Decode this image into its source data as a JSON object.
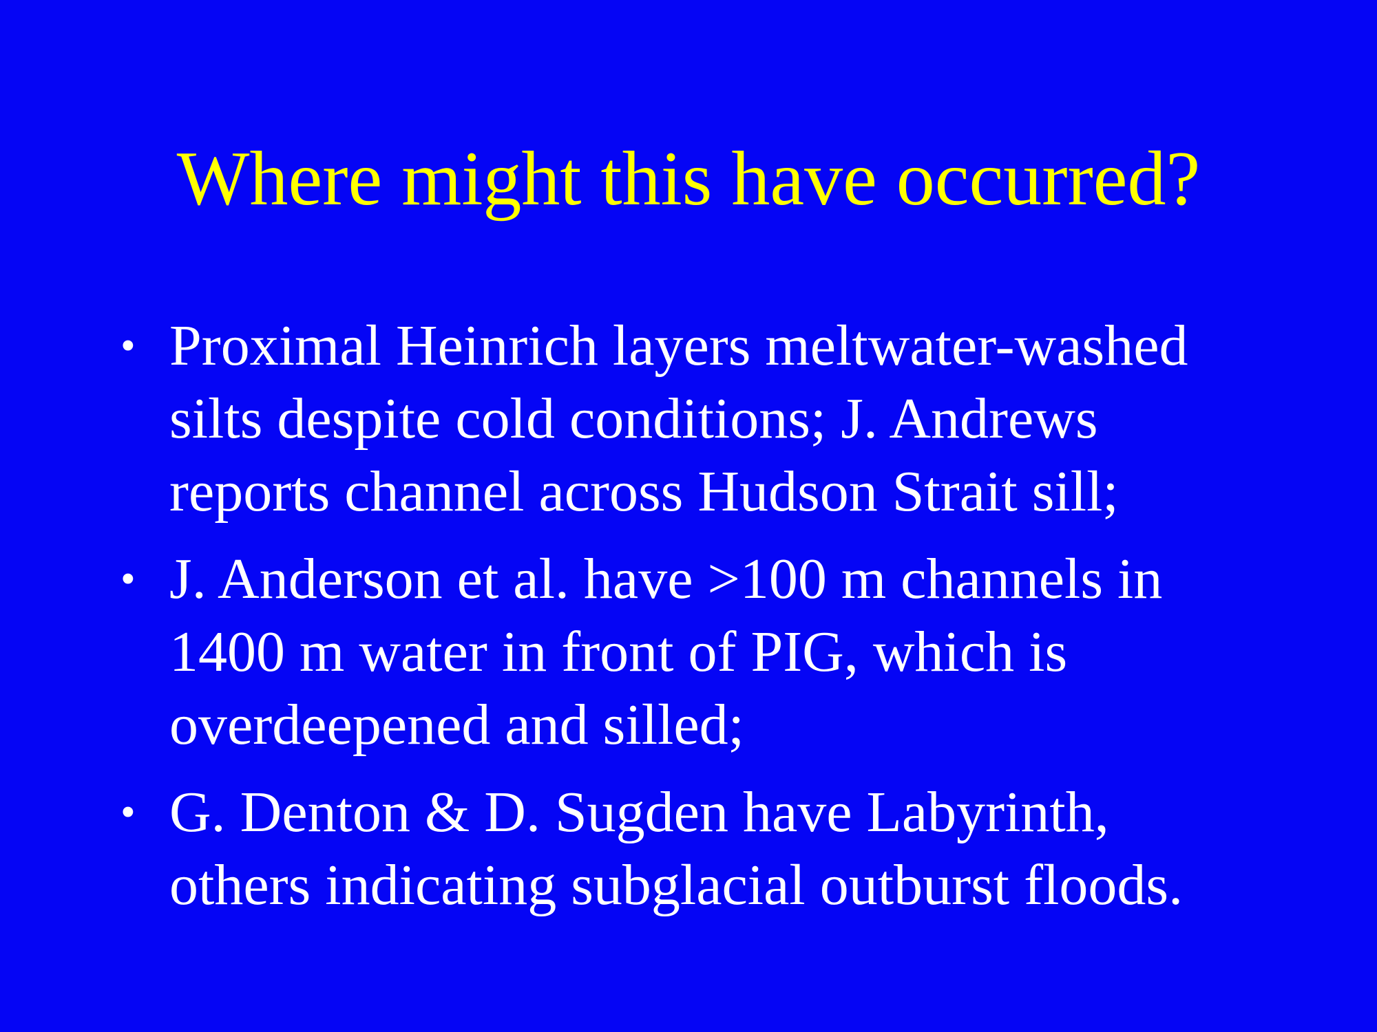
{
  "slide": {
    "title": "Where might this have occurred?",
    "bullets": [
      {
        "lines": [
          "Proximal Heinrich layers meltwater-washed",
          "silts despite cold conditions; J. Andrews",
          "reports channel across Hudson Strait sill;"
        ]
      },
      {
        "lines": [
          "J. Anderson et al. have >100 m channels in",
          "1400 m water in front of PIG, which is",
          "overdeepened and silled;"
        ]
      },
      {
        "lines": [
          "G. Denton & D. Sugden have Labyrinth,",
          "others indicating subglacial outburst floods."
        ]
      }
    ],
    "colors": {
      "background": "#0505f5",
      "title": "#ffff00",
      "body": "#ffffff"
    }
  }
}
